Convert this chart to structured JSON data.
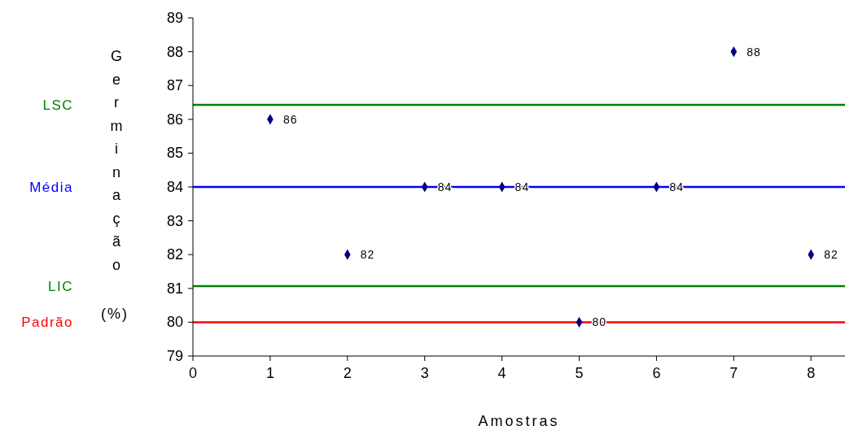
{
  "chart_data": {
    "type": "scatter",
    "xlabel": "Amostras",
    "ylabel": "Germinação (%)",
    "x": [
      1,
      2,
      3,
      4,
      5,
      6,
      7,
      8
    ],
    "series": [
      {
        "color": "#000080",
        "values": [
          86,
          82,
          84,
          84,
          80,
          84,
          88,
          82
        ]
      }
    ],
    "xlim": [
      0,
      8.44
    ],
    "ylim": [
      79,
      89
    ],
    "xticks": [
      0,
      1,
      2,
      3,
      4,
      5,
      6,
      7,
      8
    ],
    "yticks": [
      79,
      80,
      81,
      82,
      83,
      84,
      85,
      86,
      87,
      88,
      89
    ],
    "marker": "diamond",
    "data_labels": true,
    "grid": false,
    "ref_lines": [
      {
        "axis": "y",
        "value": 86.43,
        "label": "LSC",
        "color": "#008000"
      },
      {
        "axis": "y",
        "value": 84,
        "label": "Média",
        "color": "#0000ff"
      },
      {
        "axis": "y",
        "value": 81.07,
        "label": "LIC",
        "color": "#008000"
      },
      {
        "axis": "y",
        "value": 80,
        "label": "Padrão",
        "color": "#ff0000"
      }
    ]
  }
}
